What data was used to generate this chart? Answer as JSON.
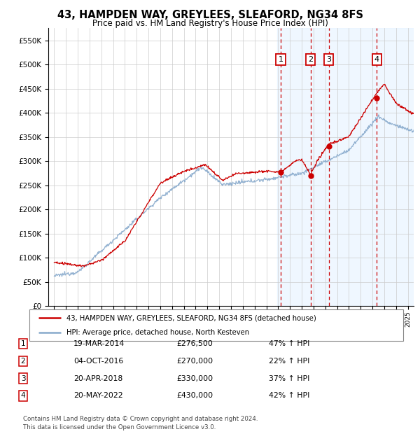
{
  "title1": "43, HAMPDEN WAY, GREYLEES, SLEAFORD, NG34 8FS",
  "title2": "Price paid vs. HM Land Registry's House Price Index (HPI)",
  "legend_label1": "43, HAMPDEN WAY, GREYLEES, SLEAFORD, NG34 8FS (detached house)",
  "legend_label2": "HPI: Average price, detached house, North Kesteven",
  "color_red": "#cc0000",
  "color_blue": "#88aacc",
  "color_bg_shade": "#ddeeff",
  "ylim": [
    0,
    575000
  ],
  "yticks": [
    0,
    50000,
    100000,
    150000,
    200000,
    250000,
    300000,
    350000,
    400000,
    450000,
    500000,
    550000
  ],
  "transactions": [
    {
      "num": 1,
      "date": "19-MAR-2014",
      "price": 276500,
      "pct": "47%",
      "dir": "↑",
      "year": 2014.21
    },
    {
      "num": 2,
      "date": "04-OCT-2016",
      "price": 270000,
      "pct": "22%",
      "dir": "↑",
      "year": 2016.75
    },
    {
      "num": 3,
      "date": "20-APR-2018",
      "price": 330000,
      "pct": "37%",
      "dir": "↑",
      "year": 2018.3
    },
    {
      "num": 4,
      "date": "20-MAY-2022",
      "price": 430000,
      "pct": "42%",
      "dir": "↑",
      "year": 2022.38
    }
  ],
  "footer1": "Contains HM Land Registry data © Crown copyright and database right 2024.",
  "footer2": "This data is licensed under the Open Government Licence v3.0.",
  "xlim_start": 1994.5,
  "xlim_end": 2025.5
}
